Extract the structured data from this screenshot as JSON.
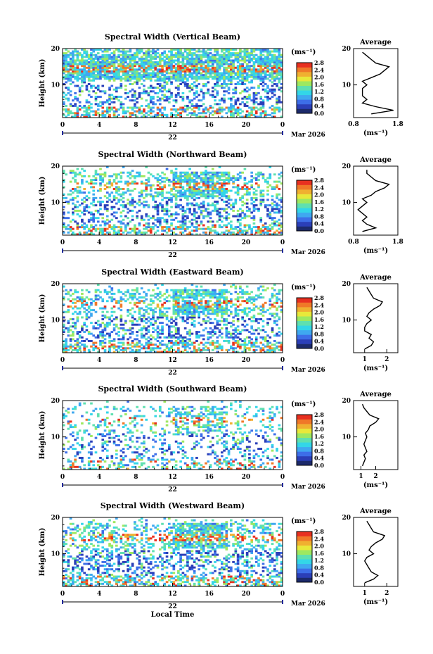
{
  "figure": {
    "x_axis_label": "Local Time",
    "y_axis_label": "Height (km)",
    "date_label": "Mar 2026",
    "day_label": "22",
    "colorbar_units": "(ms⁻¹)",
    "average_title": "Average",
    "average_units": "(ms⁻¹)"
  },
  "chart_data": [
    {
      "type": "heatmap",
      "title": "Spectral Width (Vertical Beam)",
      "xlabel": "",
      "ylabel": "Height (km)",
      "xlim": [
        0,
        24
      ],
      "ylim": [
        1,
        20
      ],
      "xticks": [
        "0",
        "4",
        "8",
        "12",
        "16",
        "20",
        "0"
      ],
      "yticks": [
        "10",
        "20"
      ],
      "colorbar": {
        "min": 0.0,
        "max": 2.8,
        "ticks": [
          "0.0",
          "0.4",
          "0.8",
          "1.2",
          "1.6",
          "2.0",
          "2.4",
          "2.8"
        ]
      },
      "average_profile": {
        "xlim": [
          0.8,
          1.8
        ],
        "xticks": [
          "0.8",
          "1.8"
        ],
        "yticks": [
          "10",
          "20"
        ],
        "heights": [
          2,
          3,
          4,
          5,
          6,
          7,
          8,
          9,
          10,
          11,
          12,
          13,
          14,
          15,
          16,
          17,
          18,
          19
        ],
        "values": [
          1.2,
          1.7,
          1.3,
          1.0,
          1.1,
          1.0,
          1.0,
          1.0,
          1.1,
          1.0,
          1.2,
          1.4,
          1.5,
          1.6,
          1.3,
          1.2,
          1.1,
          1.0
        ]
      }
    },
    {
      "type": "heatmap",
      "title": "Spectral Width (Northward Beam)",
      "xlabel": "",
      "ylabel": "Height (km)",
      "xlim": [
        0,
        24
      ],
      "ylim": [
        1,
        20
      ],
      "xticks": [
        "0",
        "4",
        "8",
        "12",
        "16",
        "20",
        "0"
      ],
      "yticks": [
        "10",
        "20"
      ],
      "colorbar": {
        "min": 0.0,
        "max": 2.8,
        "ticks": [
          "0.0",
          "0.4",
          "0.8",
          "1.2",
          "1.6",
          "2.0",
          "2.4",
          "2.8"
        ]
      },
      "average_profile": {
        "xlim": [
          0.8,
          1.8
        ],
        "xticks": [
          "0.8",
          "1.8"
        ],
        "yticks": [
          "10",
          "20"
        ],
        "heights": [
          2,
          3,
          4,
          5,
          6,
          7,
          8,
          9,
          10,
          11,
          12,
          13,
          14,
          15,
          16,
          17,
          18,
          19
        ],
        "values": [
          1.0,
          1.3,
          1.1,
          1.0,
          1.1,
          1.0,
          0.9,
          1.0,
          1.1,
          1.0,
          1.2,
          1.3,
          1.5,
          1.6,
          1.3,
          1.2,
          1.1,
          1.1
        ]
      }
    },
    {
      "type": "heatmap",
      "title": "Spectral Width (Eastward Beam)",
      "xlabel": "",
      "ylabel": "Height (km)",
      "xlim": [
        0,
        24
      ],
      "ylim": [
        1,
        20
      ],
      "xticks": [
        "0",
        "4",
        "8",
        "12",
        "16",
        "20",
        "0"
      ],
      "yticks": [
        "10",
        "20"
      ],
      "colorbar": {
        "min": 0.0,
        "max": 2.8,
        "ticks": [
          "0.0",
          "0.4",
          "0.8",
          "1.2",
          "1.6",
          "2.0",
          "2.4",
          "2.8"
        ]
      },
      "average_profile": {
        "xlim": [
          0.5,
          2.5
        ],
        "xticks": [
          "1",
          "2"
        ],
        "yticks": [
          "10",
          "20"
        ],
        "heights": [
          2,
          3,
          4,
          5,
          6,
          7,
          8,
          9,
          10,
          11,
          12,
          13,
          14,
          15,
          16,
          17,
          18,
          19
        ],
        "values": [
          1.0,
          1.3,
          1.4,
          1.2,
          1.3,
          1.0,
          1.0,
          1.1,
          1.3,
          1.1,
          1.2,
          1.4,
          1.7,
          1.8,
          1.4,
          1.3,
          1.2,
          1.1
        ]
      }
    },
    {
      "type": "heatmap",
      "title": "Spectral Width (Southward Beam)",
      "xlabel": "",
      "ylabel": "Height (km)",
      "xlim": [
        0,
        24
      ],
      "ylim": [
        1,
        20
      ],
      "xticks": [
        "0",
        "4",
        "8",
        "12",
        "16",
        "20",
        "0"
      ],
      "yticks": [
        "10",
        "20"
      ],
      "colorbar": {
        "min": 0.0,
        "max": 2.8,
        "ticks": [
          "0.0",
          "0.4",
          "0.8",
          "1.2",
          "1.6",
          "2.0",
          "2.4",
          "2.8"
        ]
      },
      "average_profile": {
        "xlim": [
          0.5,
          3.5
        ],
        "xticks": [
          "1",
          "2"
        ],
        "yticks": [
          "10",
          "20"
        ],
        "heights": [
          2,
          3,
          4,
          5,
          6,
          7,
          8,
          9,
          10,
          11,
          12,
          13,
          14,
          15,
          16,
          17,
          18,
          19
        ],
        "values": [
          1.1,
          1.2,
          1.3,
          1.2,
          1.4,
          1.3,
          1.2,
          1.3,
          1.4,
          1.3,
          1.5,
          1.6,
          2.0,
          2.2,
          1.6,
          1.4,
          1.2,
          1.1
        ]
      }
    },
    {
      "type": "heatmap",
      "title": "Spectral Width (Westward Beam)",
      "xlabel": "Local Time",
      "ylabel": "Height (km)",
      "xlim": [
        0,
        24
      ],
      "ylim": [
        1,
        20
      ],
      "xticks": [
        "0",
        "4",
        "8",
        "12",
        "16",
        "20",
        "0"
      ],
      "yticks": [
        "10",
        "20"
      ],
      "colorbar": {
        "min": 0.0,
        "max": 2.8,
        "ticks": [
          "0.0",
          "0.4",
          "0.8",
          "1.2",
          "1.6",
          "2.0",
          "2.4",
          "2.8"
        ]
      },
      "average_profile": {
        "xlim": [
          0.5,
          2.5
        ],
        "xticks": [
          "1",
          "2"
        ],
        "yticks": [
          "10",
          "20"
        ],
        "heights": [
          2,
          3,
          4,
          5,
          6,
          7,
          8,
          9,
          10,
          11,
          12,
          13,
          14,
          15,
          16,
          17,
          18,
          19
        ],
        "values": [
          1.0,
          1.4,
          1.6,
          1.3,
          1.2,
          1.1,
          1.0,
          1.1,
          1.4,
          1.2,
          1.3,
          1.5,
          1.8,
          1.9,
          1.4,
          1.3,
          1.2,
          1.1
        ]
      }
    }
  ]
}
